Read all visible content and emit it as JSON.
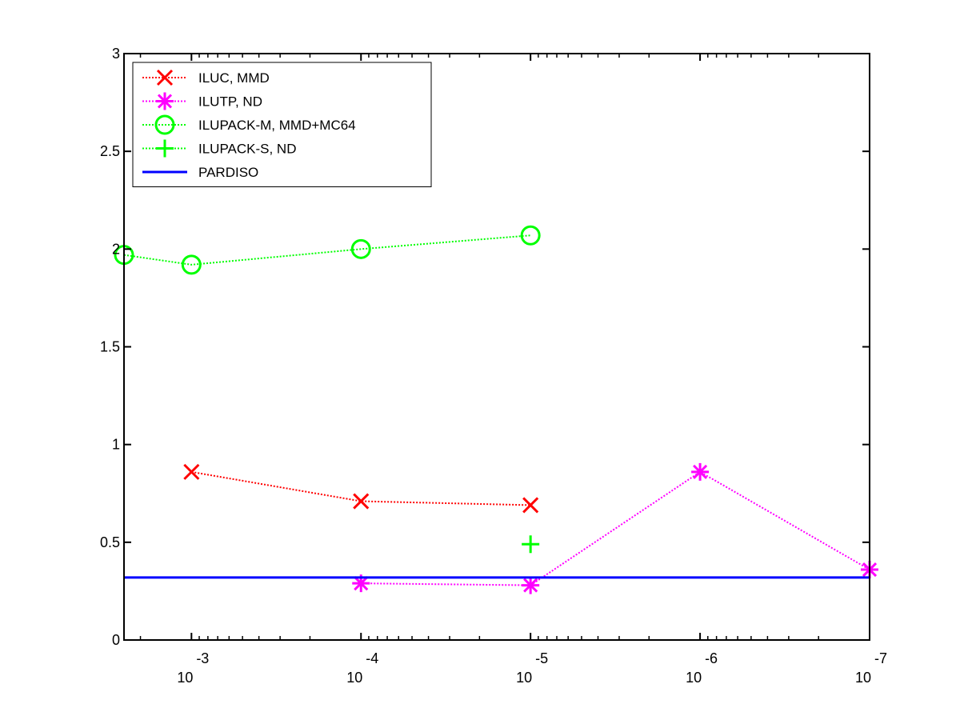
{
  "chart_data": {
    "type": "line",
    "title": "",
    "xlabel": "",
    "ylabel": "",
    "x_scale": "log",
    "x_ticks": [
      {
        "value": 0.001,
        "base": "10",
        "exp": "-3"
      },
      {
        "value": 0.0001,
        "base": "10",
        "exp": "-4"
      },
      {
        "value": 1e-05,
        "base": "10",
        "exp": "-5"
      },
      {
        "value": 1e-06,
        "base": "10",
        "exp": "-6"
      },
      {
        "value": 1e-07,
        "base": "10",
        "exp": "-7"
      }
    ],
    "xlim": [
      0.0025,
      1e-07
    ],
    "x_direction": "reversed",
    "ylim": [
      0,
      3
    ],
    "y_ticks": [
      "0",
      "0.5",
      "1",
      "1.5",
      "2",
      "2.5",
      "3"
    ],
    "grid": false,
    "legend_position": "top-left",
    "series": [
      {
        "name": "ILUC, MMD",
        "color": "#ff0000",
        "marker": "x",
        "line_style": "dotted",
        "points": [
          {
            "x": 0.001,
            "y": 0.86
          },
          {
            "x": 0.0001,
            "y": 0.71
          },
          {
            "x": 1e-05,
            "y": 0.69
          }
        ]
      },
      {
        "name": "ILUTP,  ND",
        "color": "#ff00ff",
        "marker": "asterisk",
        "line_style": "dotted",
        "points": [
          {
            "x": 0.0001,
            "y": 0.29
          },
          {
            "x": 1e-05,
            "y": 0.28
          },
          {
            "x": 1e-06,
            "y": 0.86
          },
          {
            "x": 1e-07,
            "y": 0.36
          }
        ]
      },
      {
        "name": "ILUPACK-M, MMD+MC64",
        "color": "#00ff00",
        "marker": "circle",
        "line_style": "dotted",
        "points": [
          {
            "x": 0.0025,
            "y": 1.97
          },
          {
            "x": 0.001,
            "y": 1.92
          },
          {
            "x": 0.0001,
            "y": 2.0
          },
          {
            "x": 1e-05,
            "y": 2.07
          }
        ]
      },
      {
        "name": "ILUPACK-S, ND",
        "color": "#00ff00",
        "marker": "plus",
        "line_style": "dotted",
        "points": [
          {
            "x": 1e-05,
            "y": 0.49
          }
        ]
      },
      {
        "name": "PARDISO",
        "color": "#0000ff",
        "marker": "none",
        "line_style": "solid",
        "points": [
          {
            "x": 0.0025,
            "y": 0.32
          },
          {
            "x": 1e-07,
            "y": 0.32
          }
        ]
      }
    ]
  }
}
